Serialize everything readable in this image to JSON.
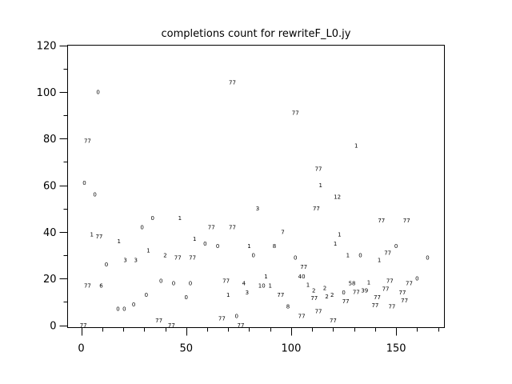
{
  "chart_data": {
    "type": "scatter",
    "title": "completions count for rewriteF_L0.jy",
    "xlabel": "",
    "ylabel": "",
    "xlim": [
      -6.5,
      173
    ],
    "ylim": [
      -1,
      120
    ],
    "xticks": [
      0,
      50,
      100,
      150
    ],
    "yticks": [
      0,
      20,
      40,
      60,
      80,
      100,
      120
    ],
    "grid": false,
    "marker": "text label",
    "points": [
      {
        "x": 8,
        "y": 100,
        "label": "0"
      },
      {
        "x": 3,
        "y": 79,
        "label": "77"
      },
      {
        "x": 1.5,
        "y": 61,
        "label": "0"
      },
      {
        "x": 6.5,
        "y": 56,
        "label": "0"
      },
      {
        "x": 5,
        "y": 39,
        "label": "1"
      },
      {
        "x": 7,
        "y": 38,
        "label": "77"
      },
      {
        "x": 18,
        "y": 36,
        "label": "1"
      },
      {
        "x": 34,
        "y": 46,
        "label": "0"
      },
      {
        "x": 29,
        "y": 42,
        "label": "0"
      },
      {
        "x": 47,
        "y": 46,
        "label": "1"
      },
      {
        "x": 32,
        "y": 32,
        "label": "1"
      },
      {
        "x": 12,
        "y": 26,
        "label": "0"
      },
      {
        "x": 21,
        "y": 28,
        "label": "3"
      },
      {
        "x": 26,
        "y": 28,
        "label": "3"
      },
      {
        "x": 40,
        "y": 30,
        "label": "2"
      },
      {
        "x": 46,
        "y": 29,
        "label": "77"
      },
      {
        "x": 53,
        "y": 29,
        "label": "77"
      },
      {
        "x": 3,
        "y": 17,
        "label": "77"
      },
      {
        "x": 9.5,
        "y": 17,
        "label": "6"
      },
      {
        "x": 38,
        "y": 19,
        "label": "0"
      },
      {
        "x": 44,
        "y": 18,
        "label": "0"
      },
      {
        "x": 52,
        "y": 18,
        "label": "0"
      },
      {
        "x": 31,
        "y": 13,
        "label": "0"
      },
      {
        "x": 50,
        "y": 12,
        "label": "0"
      },
      {
        "x": 25,
        "y": 9,
        "label": "0"
      },
      {
        "x": 17.5,
        "y": 7,
        "label": "0"
      },
      {
        "x": 20.5,
        "y": 7,
        "label": "0"
      },
      {
        "x": 1,
        "y": 0,
        "label": "77"
      },
      {
        "x": 37,
        "y": 2,
        "label": "77"
      },
      {
        "x": 43,
        "y": 0,
        "label": "77"
      },
      {
        "x": 72,
        "y": 104,
        "label": "77"
      },
      {
        "x": 102,
        "y": 91,
        "label": "77"
      },
      {
        "x": 131,
        "y": 77,
        "label": "1"
      },
      {
        "x": 113,
        "y": 67,
        "label": "77"
      },
      {
        "x": 114,
        "y": 60,
        "label": "1"
      },
      {
        "x": 122,
        "y": 55,
        "label": "12"
      },
      {
        "x": 112,
        "y": 50,
        "label": "77"
      },
      {
        "x": 84,
        "y": 50,
        "label": "3"
      },
      {
        "x": 62,
        "y": 42,
        "label": "77"
      },
      {
        "x": 72,
        "y": 42,
        "label": "77"
      },
      {
        "x": 96,
        "y": 40,
        "label": "7"
      },
      {
        "x": 54,
        "y": 37,
        "label": "1"
      },
      {
        "x": 59,
        "y": 35,
        "label": "0"
      },
      {
        "x": 65,
        "y": 34,
        "label": "0"
      },
      {
        "x": 80,
        "y": 34,
        "label": "1"
      },
      {
        "x": 92,
        "y": 34,
        "label": "8"
      },
      {
        "x": 82,
        "y": 30,
        "label": "0"
      },
      {
        "x": 102,
        "y": 29,
        "label": "0"
      },
      {
        "x": 106,
        "y": 25,
        "label": "77"
      },
      {
        "x": 88,
        "y": 21,
        "label": "1"
      },
      {
        "x": 105,
        "y": 21,
        "label": "40"
      },
      {
        "x": 69,
        "y": 19,
        "label": "77"
      },
      {
        "x": 77.5,
        "y": 18,
        "label": "4"
      },
      {
        "x": 86,
        "y": 17,
        "label": "10"
      },
      {
        "x": 90,
        "y": 17,
        "label": "1"
      },
      {
        "x": 108,
        "y": 18,
        "label": "1"
      },
      {
        "x": 70,
        "y": 13,
        "label": "1"
      },
      {
        "x": 79,
        "y": 14,
        "label": "3"
      },
      {
        "x": 95,
        "y": 13,
        "label": "77"
      },
      {
        "x": 110,
        "y": 15,
        "label": "2"
      },
      {
        "x": 111,
        "y": 13,
        "label": "77"
      },
      {
        "x": 98.5,
        "y": 8,
        "label": "8"
      },
      {
        "x": 105,
        "y": 4,
        "label": "77"
      },
      {
        "x": 67,
        "y": 3,
        "label": "77"
      },
      {
        "x": 74,
        "y": 4,
        "label": "0"
      },
      {
        "x": 76,
        "y": 0,
        "label": "77"
      },
      {
        "x": 143,
        "y": 45,
        "label": "77"
      },
      {
        "x": 155,
        "y": 45,
        "label": "77"
      },
      {
        "x": 123,
        "y": 39,
        "label": "1"
      },
      {
        "x": 121,
        "y": 35,
        "label": "1"
      },
      {
        "x": 150,
        "y": 34,
        "label": "0"
      },
      {
        "x": 146,
        "y": 31,
        "label": "77"
      },
      {
        "x": 127,
        "y": 30,
        "label": "1"
      },
      {
        "x": 133,
        "y": 30,
        "label": "0"
      },
      {
        "x": 142,
        "y": 28,
        "label": "1"
      },
      {
        "x": 165,
        "y": 29,
        "label": "0"
      },
      {
        "x": 160,
        "y": 20,
        "label": "0"
      },
      {
        "x": 116,
        "y": 16,
        "label": "2"
      },
      {
        "x": 117,
        "y": 13,
        "label": "2"
      },
      {
        "x": 118,
        "y": 13,
        "label": "2"
      },
      {
        "x": 129,
        "y": 18,
        "label": "58"
      },
      {
        "x": 131,
        "y": 15,
        "label": "77"
      },
      {
        "x": 135,
        "y": 15,
        "label": "39"
      },
      {
        "x": 137,
        "y": 17,
        "label": "1"
      },
      {
        "x": 125,
        "y": 14,
        "label": "0"
      },
      {
        "x": 126,
        "y": 11,
        "label": "77"
      },
      {
        "x": 147,
        "y": 19,
        "label": "77"
      },
      {
        "x": 145,
        "y": 17,
        "label": "77"
      },
      {
        "x": 157,
        "y": 18,
        "label": "77"
      },
      {
        "x": 141,
        "y": 12,
        "label": "77"
      },
      {
        "x": 140,
        "y": 10,
        "label": "77"
      },
      {
        "x": 153,
        "y": 14,
        "label": "77"
      },
      {
        "x": 154,
        "y": 12,
        "label": "77"
      },
      {
        "x": 148,
        "y": 8,
        "label": "77"
      },
      {
        "x": 113,
        "y": 6,
        "label": "77"
      },
      {
        "x": 120,
        "y": 2,
        "label": "77"
      }
    ]
  }
}
